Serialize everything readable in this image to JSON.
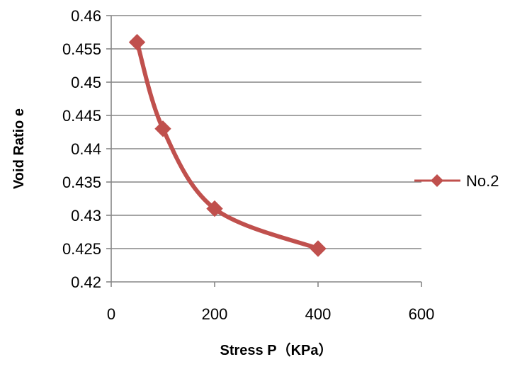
{
  "colors": {
    "series": "#c0504d",
    "grid": "#868686",
    "axis": "#868686",
    "background": "#ffffff"
  },
  "chart_data": {
    "type": "line",
    "title": "",
    "xlabel": "Stress P（KPa）",
    "ylabel": "Void Ratio e",
    "xlim": [
      0,
      600
    ],
    "ylim": [
      0.42,
      0.46
    ],
    "x_ticks": [
      0,
      200,
      400,
      600
    ],
    "x_tick_labels": [
      "0",
      "200",
      "400",
      "600"
    ],
    "y_ticks": [
      0.42,
      0.425,
      0.43,
      0.435,
      0.44,
      0.445,
      0.45,
      0.455,
      0.46
    ],
    "y_tick_labels": [
      "0.42",
      "0.425",
      "0.43",
      "0.435",
      "0.44",
      "0.445",
      "0.45",
      "0.455",
      "0.46"
    ],
    "grid": {
      "horizontal": true,
      "vertical": false
    },
    "legend": {
      "position": "right"
    },
    "smooth": true,
    "series": [
      {
        "name": "No.2",
        "marker": "diamond",
        "x": [
          50,
          100,
          200,
          400
        ],
        "y": [
          0.456,
          0.443,
          0.431,
          0.425
        ]
      }
    ]
  }
}
